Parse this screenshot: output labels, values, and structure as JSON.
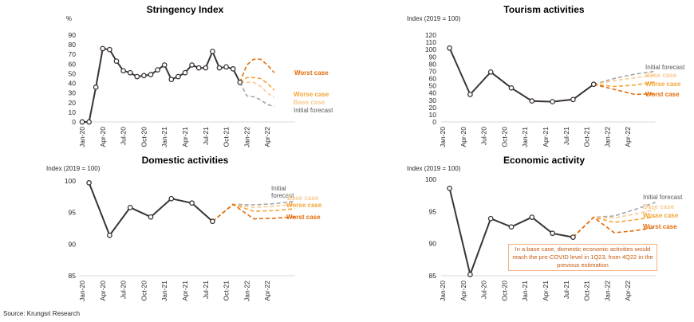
{
  "source": "Source: Krungsri Research",
  "colors": {
    "actual": "#3b3434",
    "worst": "#e26b0a",
    "worse": "#f4a536",
    "base": "#f8cb93",
    "initial": "#a6a6a6"
  },
  "chart_data": [
    {
      "type": "line",
      "title": "Stringency Index",
      "ylabel": "%",
      "ylim": [
        0,
        90
      ],
      "yticks": [
        0,
        10,
        20,
        30,
        40,
        50,
        60,
        70,
        80,
        90
      ],
      "x_ticks": [
        "Jan-20",
        "Apr-20",
        "Jul-20",
        "Oct-20",
        "Jan-21",
        "Apr-21",
        "Jul-21",
        "Oct-21",
        "Jan-22",
        "Apr-22"
      ],
      "actual": {
        "x": [
          "Jan-20",
          "Feb-20",
          "Mar-20",
          "Apr-20",
          "May-20",
          "Jun-20",
          "Jul-20",
          "Aug-20",
          "Sep-20",
          "Oct-20",
          "Nov-20",
          "Dec-20",
          "Jan-21",
          "Feb-21",
          "Mar-21",
          "Apr-21",
          "May-21",
          "Jun-21",
          "Jul-21",
          "Aug-21",
          "Sep-21",
          "Oct-21",
          "Nov-21",
          "Dec-21"
        ],
        "y": [
          0,
          0,
          36,
          76,
          75,
          63,
          53,
          51,
          47,
          48,
          49,
          54,
          59,
          44,
          47,
          51,
          59,
          56,
          56,
          73,
          56,
          57,
          55,
          41
        ]
      },
      "scenarios": [
        {
          "name": "Worst case",
          "x": [
            "Dec-21",
            "Jan-22",
            "Feb-22",
            "Mar-22",
            "Apr-22",
            "May-22"
          ],
          "y": [
            41,
            59,
            65,
            65,
            59,
            51
          ]
        },
        {
          "name": "Worse case",
          "x": [
            "Dec-21",
            "Jan-22",
            "Feb-22",
            "Mar-22",
            "Apr-22",
            "May-22"
          ],
          "y": [
            41,
            46,
            46,
            45,
            40,
            33
          ]
        },
        {
          "name": "Base case",
          "x": [
            "Dec-21",
            "Jan-22",
            "Feb-22",
            "Mar-22",
            "Apr-22",
            "May-22"
          ],
          "y": [
            41,
            41,
            41,
            37,
            30,
            25
          ]
        },
        {
          "name": "Initial forecast",
          "x": [
            "Dec-21",
            "Jan-22",
            "Feb-22",
            "Mar-22",
            "Apr-22",
            "May-22"
          ],
          "y": [
            41,
            27,
            26,
            23,
            18,
            16
          ]
        }
      ]
    },
    {
      "type": "line",
      "title": "Tourism activities",
      "ylabel": "Index (2019 = 100)",
      "ylim": [
        0,
        120
      ],
      "yticks": [
        0,
        10,
        20,
        30,
        40,
        50,
        60,
        70,
        80,
        90,
        100,
        110,
        120
      ],
      "x_ticks": [
        "Jan-20",
        "Apr-20",
        "Jul-20",
        "Oct-20",
        "Jan-21",
        "Apr-21",
        "Jul-21",
        "Oct-21",
        "Jan-22",
        "Apr-22"
      ],
      "actual": {
        "x": [
          "Feb-20",
          "May-20",
          "Aug-20",
          "Nov-20",
          "Feb-21",
          "May-21",
          "Aug-21",
          "Nov-21"
        ],
        "y": [
          102,
          38,
          69,
          47,
          29,
          28,
          31,
          52
        ]
      },
      "scenarios": [
        {
          "name": "Initial forecast",
          "x": [
            "Nov-21",
            "Feb-22",
            "May-22",
            "Aug-22"
          ],
          "y": [
            52,
            60,
            66,
            70
          ]
        },
        {
          "name": "Base case",
          "x": [
            "Nov-21",
            "Feb-22",
            "May-22",
            "Aug-22"
          ],
          "y": [
            52,
            57,
            61,
            65
          ]
        },
        {
          "name": "Worse case",
          "x": [
            "Nov-21",
            "Feb-22",
            "May-22",
            "Aug-22"
          ],
          "y": [
            52,
            49,
            51,
            55
          ]
        },
        {
          "name": "Worst case",
          "x": [
            "Nov-21",
            "Feb-22",
            "May-22",
            "Aug-22"
          ],
          "y": [
            52,
            45,
            38,
            39
          ]
        }
      ]
    },
    {
      "type": "line",
      "title": "Domestic activities",
      "ylabel": "Index (2019 = 100)",
      "ylim": [
        85,
        100
      ],
      "yticks": [
        85,
        90,
        95,
        100
      ],
      "x_ticks": [
        "Jan-20",
        "Apr-20",
        "Jul-20",
        "Oct-20",
        "Jan-21",
        "Apr-21",
        "Jul-21",
        "Oct-21",
        "Jan-22",
        "Apr-22"
      ],
      "actual": {
        "x": [
          "Feb-20",
          "May-20",
          "Aug-20",
          "Nov-20",
          "Feb-21",
          "May-21",
          "Aug-21"
        ],
        "y": [
          99.7,
          91.4,
          95.8,
          94.3,
          97.2,
          96.5,
          93.6
        ]
      },
      "scenarios": [
        {
          "name": "Initial forecast",
          "x": [
            "Aug-21",
            "Nov-21",
            "Feb-22",
            "May-22",
            "Aug-22"
          ],
          "y": [
            93.6,
            96.3,
            96.2,
            96.4,
            96.8
          ]
        },
        {
          "name": "Base case",
          "x": [
            "Aug-21",
            "Nov-21",
            "Feb-22",
            "May-22",
            "Aug-22"
          ],
          "y": [
            93.6,
            96.3,
            95.8,
            96.0,
            96.3
          ]
        },
        {
          "name": "Worse case",
          "x": [
            "Aug-21",
            "Nov-21",
            "Feb-22",
            "May-22",
            "Aug-22"
          ],
          "y": [
            93.6,
            96.3,
            95.2,
            95.3,
            95.6
          ]
        },
        {
          "name": "Worst case",
          "x": [
            "Aug-21",
            "Nov-21",
            "Feb-22",
            "May-22",
            "Aug-22"
          ],
          "y": [
            93.6,
            96.3,
            94.0,
            94.1,
            94.3
          ]
        }
      ],
      "label_lines": {
        "Initial forecast": [
          "Initial",
          "forecast"
        ]
      }
    },
    {
      "type": "line",
      "title": "Economic activity",
      "ylabel": "Index (2019 = 100)",
      "ylim": [
        85,
        100
      ],
      "yticks": [
        85,
        90,
        95,
        100
      ],
      "x_ticks": [
        "Jan-20",
        "Apr-20",
        "Jul-20",
        "Oct-20",
        "Jan-21",
        "Apr-21",
        "Jul-21",
        "Oct-21",
        "Jan-22",
        "Apr-22"
      ],
      "actual": {
        "x": [
          "Feb-20",
          "May-20",
          "Aug-20",
          "Nov-20",
          "Feb-21",
          "May-21",
          "Aug-21"
        ],
        "y": [
          98.6,
          85.2,
          93.9,
          92.6,
          94.1,
          91.6,
          91.0
        ]
      },
      "scenarios": [
        {
          "name": "Initial forecast",
          "x": [
            "Aug-21",
            "Nov-21",
            "Feb-22",
            "May-22",
            "Aug-22"
          ],
          "y": [
            91.0,
            94.1,
            94.3,
            95.3,
            96.4
          ]
        },
        {
          "name": "Base case",
          "x": [
            "Aug-21",
            "Nov-21",
            "Feb-22",
            "May-22",
            "Aug-22"
          ],
          "y": [
            91.0,
            94.1,
            94.0,
            94.6,
            95.3
          ]
        },
        {
          "name": "Worse case",
          "x": [
            "Aug-21",
            "Nov-21",
            "Feb-22",
            "May-22",
            "Aug-22"
          ],
          "y": [
            91.0,
            94.1,
            93.3,
            93.7,
            94.2
          ]
        },
        {
          "name": "Worst case",
          "x": [
            "Aug-21",
            "Nov-21",
            "Feb-22",
            "May-22",
            "Aug-22"
          ],
          "y": [
            91.0,
            94.1,
            91.7,
            92.0,
            92.5
          ]
        }
      ],
      "annotation": "In a base case, domestic economic activities would reach the pre-COVID level in 1Q23, from 4Q22 in the previous estimation"
    }
  ]
}
